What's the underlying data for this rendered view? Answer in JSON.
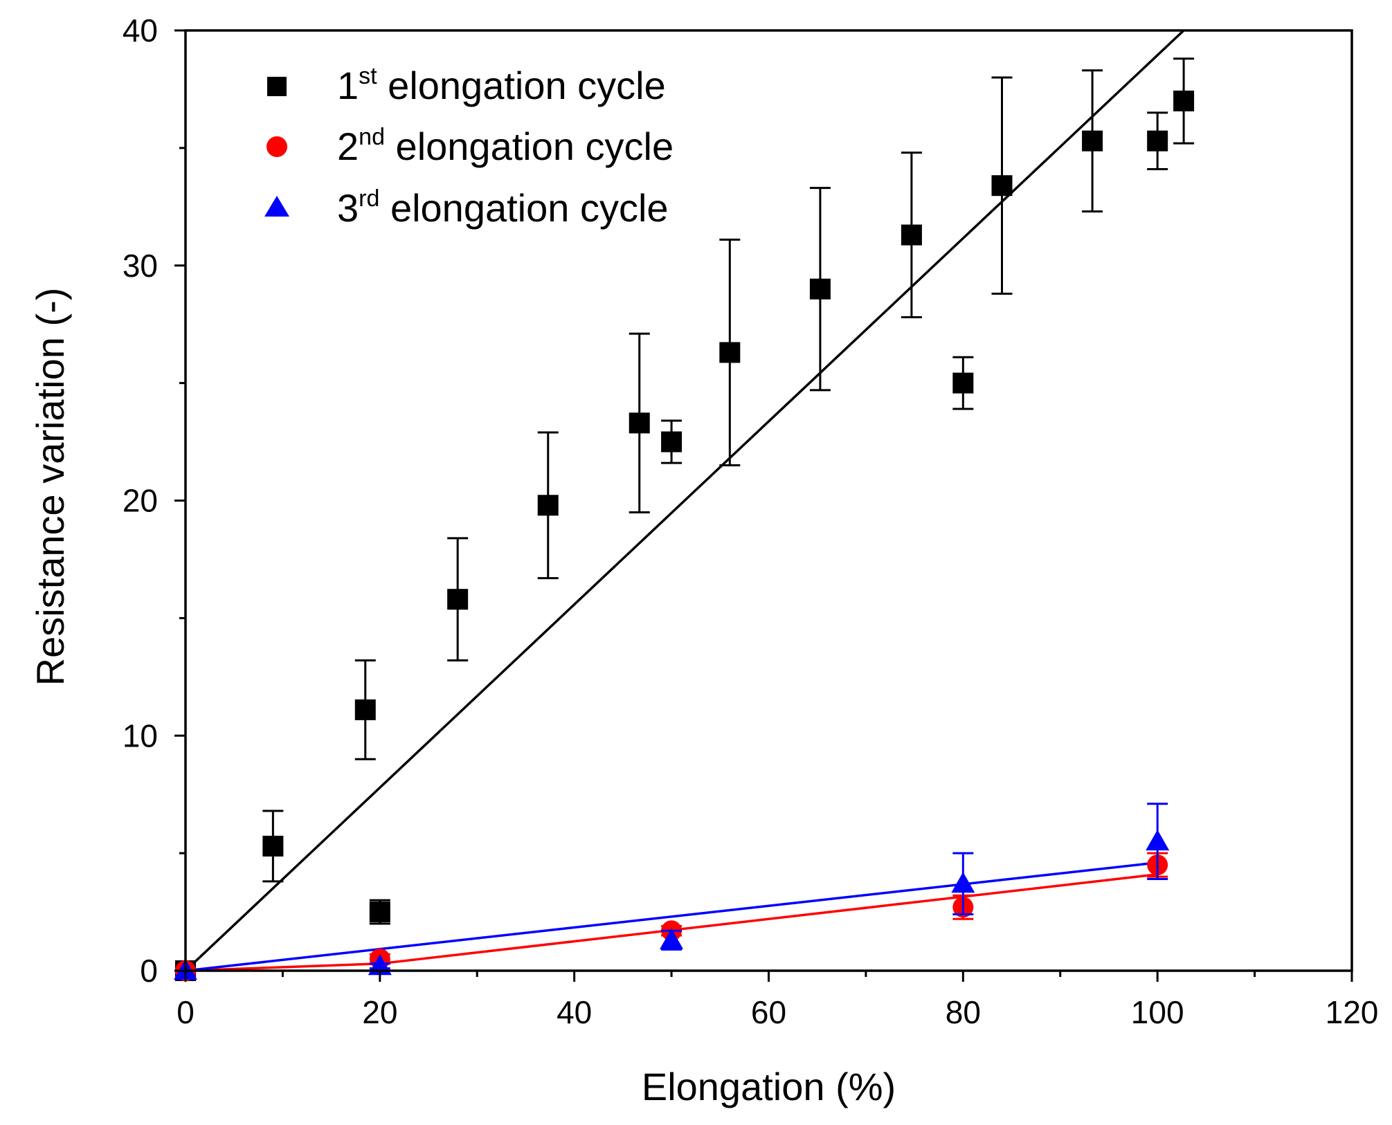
{
  "chart_data": {
    "type": "scatter",
    "title": "",
    "xlabel": "Elongation (%)",
    "ylabel": "Resistance variation (-)",
    "xlim": [
      0,
      120
    ],
    "ylim": [
      0,
      40
    ],
    "xticks": [
      0,
      20,
      40,
      60,
      80,
      100,
      120
    ],
    "yticks": [
      0,
      10,
      20,
      30,
      40
    ],
    "x_minor_step": 10,
    "y_minor_step": 5,
    "grid": false,
    "legend_position": "top-left",
    "series": [
      {
        "name": "1st elongation cycle",
        "legend_main": "1",
        "legend_sup": "st",
        "legend_rest": " elongation cycle",
        "marker": "square",
        "color": "#000000",
        "points": [
          {
            "x": 0,
            "y": 0,
            "err_low": 0,
            "err_high": 0
          },
          {
            "x": 9,
            "y": 5.3,
            "err_low": 1.5,
            "err_high": 1.5
          },
          {
            "x": 18.5,
            "y": 11.1,
            "err_low": 2.1,
            "err_high": 2.1
          },
          {
            "x": 20,
            "y": 2.5,
            "err_low": 0.5,
            "err_high": 0.5
          },
          {
            "x": 28,
            "y": 15.8,
            "err_low": 2.6,
            "err_high": 2.6
          },
          {
            "x": 37.3,
            "y": 19.8,
            "err_low": 3.1,
            "err_high": 3.1
          },
          {
            "x": 46.7,
            "y": 23.3,
            "err_low": 3.8,
            "err_high": 3.8
          },
          {
            "x": 50,
            "y": 22.5,
            "err_low": 0.9,
            "err_high": 0.9
          },
          {
            "x": 56,
            "y": 26.3,
            "err_low": 4.8,
            "err_high": 4.8
          },
          {
            "x": 65.3,
            "y": 29.0,
            "err_low": 4.3,
            "err_high": 4.3
          },
          {
            "x": 74.7,
            "y": 31.3,
            "err_low": 3.5,
            "err_high": 3.5
          },
          {
            "x": 80,
            "y": 25.0,
            "err_low": 1.1,
            "err_high": 1.1
          },
          {
            "x": 84,
            "y": 33.4,
            "err_low": 4.6,
            "err_high": 4.6
          },
          {
            "x": 93.3,
            "y": 35.3,
            "err_low": 3.0,
            "err_high": 3.0
          },
          {
            "x": 100,
            "y": 35.3,
            "err_low": 1.2,
            "err_high": 1.2
          },
          {
            "x": 102.7,
            "y": 37.0,
            "err_low": 1.8,
            "err_high": 1.8
          }
        ],
        "fit": {
          "x": [
            0,
            102.7
          ],
          "y": [
            0,
            40
          ]
        }
      },
      {
        "name": "2nd elongation cycle",
        "legend_main": "2",
        "legend_sup": "nd",
        "legend_rest": " elongation cycle",
        "marker": "circle",
        "color": "#ff0000",
        "points": [
          {
            "x": 0,
            "y": 0,
            "err_low": 0,
            "err_high": 0
          },
          {
            "x": 20,
            "y": 0.5,
            "err_low": 0.2,
            "err_high": 0.2
          },
          {
            "x": 50,
            "y": 1.7,
            "err_low": 0.2,
            "err_high": 0.2
          },
          {
            "x": 80,
            "y": 2.7,
            "err_low": 0.5,
            "err_high": 0.5
          },
          {
            "x": 100,
            "y": 4.5,
            "err_low": 0.5,
            "err_high": 0.5
          }
        ],
        "fit": {
          "x": [
            0,
            20,
            100
          ],
          "y": [
            0,
            0.3,
            4.1
          ]
        }
      },
      {
        "name": "3rd elongation cycle",
        "legend_main": "3",
        "legend_sup": "rd",
        "legend_rest": " elongation cycle",
        "marker": "triangle",
        "color": "#0000ff",
        "points": [
          {
            "x": 0,
            "y": 0,
            "err_low": 0,
            "err_high": 0
          },
          {
            "x": 20,
            "y": 0.2,
            "err_low": 0.1,
            "err_high": 0.1
          },
          {
            "x": 50,
            "y": 1.3,
            "err_low": 0.4,
            "err_high": 0.4
          },
          {
            "x": 80,
            "y": 3.7,
            "err_low": 1.3,
            "err_high": 1.3
          },
          {
            "x": 100,
            "y": 5.5,
            "err_low": 1.6,
            "err_high": 1.6
          }
        ],
        "fit": {
          "x": [
            0,
            100
          ],
          "y": [
            0,
            4.6
          ]
        }
      }
    ]
  }
}
